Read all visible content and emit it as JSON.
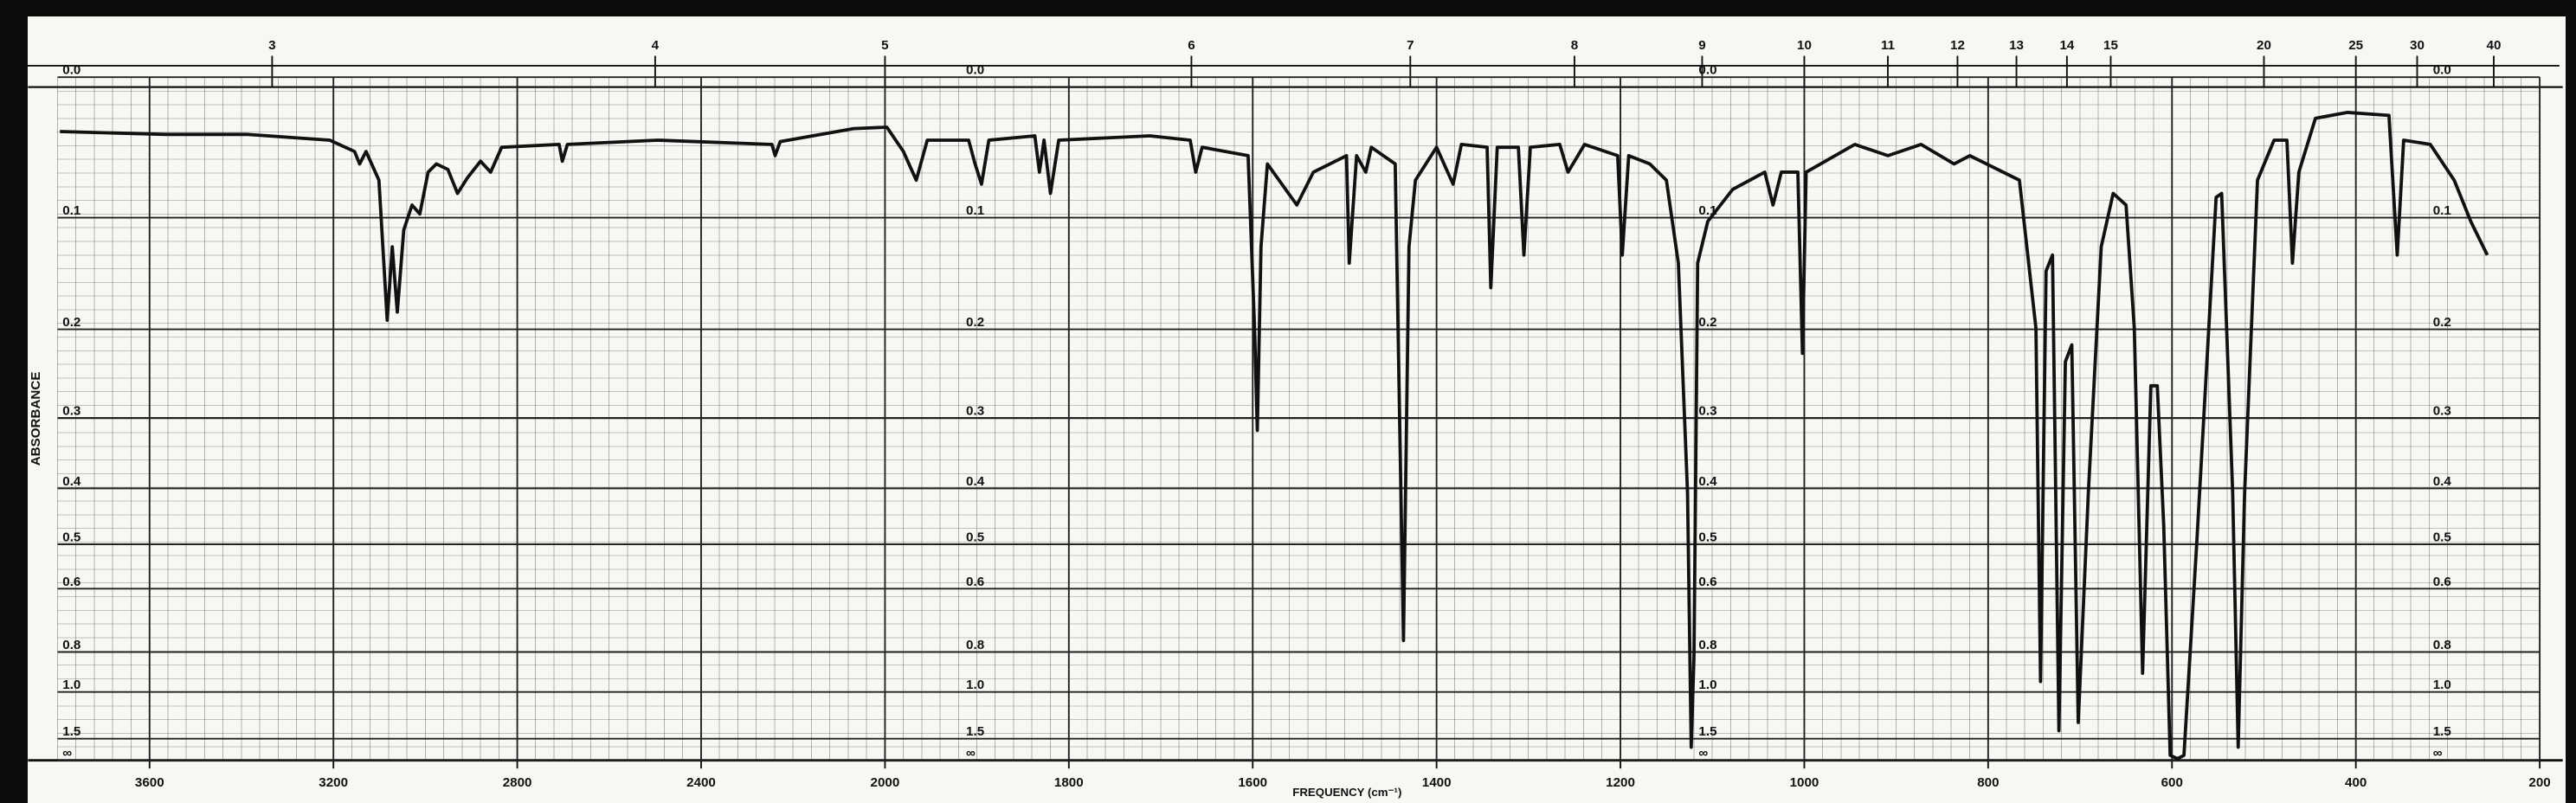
{
  "chart_data": {
    "type": "line",
    "xlabel": "FREQUENCY (cm⁻¹)",
    "ylabel": "ABSORBANCE",
    "xlim": [
      3800,
      200
    ],
    "xticks": [
      3600,
      3200,
      2800,
      2400,
      2000,
      1800,
      1600,
      1400,
      1200,
      1000,
      800,
      600,
      400,
      200
    ],
    "x2ticks": [
      3,
      4,
      5,
      6,
      7,
      8,
      9,
      10,
      11,
      12,
      13,
      14,
      15,
      20,
      25,
      30,
      40
    ],
    "ylim": [
      0,
      null
    ],
    "yscale": "transmittance",
    "yticks": [
      {
        "value": 0,
        "label": "0.0"
      },
      0.1,
      0.2,
      0.3,
      0.4,
      0.5,
      0.6,
      0.8,
      {
        "value": 1,
        "label": "1.0"
      },
      1.5,
      {
        "value": null,
        "label": "∞"
      }
    ],
    "grid": true,
    "color": "#111111",
    "x": [
      3795,
      3564,
      3386,
      3208,
      3154,
      3143,
      3129,
      3101,
      3083,
      3072,
      3061,
      3047,
      3029,
      3012,
      2994,
      2976,
      2951,
      2930,
      2908,
      2880,
      2858,
      2834,
      2709,
      2702,
      2691,
      2495,
      2246,
      2239,
      2228,
      2068,
      1998,
      1980,
      1966,
      1954,
      1909,
      1902,
      1895,
      1887,
      1837,
      1832,
      1827,
      1820,
      1811,
      1712,
      1668,
      1662,
      1655,
      1605,
      1598,
      1595,
      1591,
      1584,
      1552,
      1534,
      1498,
      1495,
      1487,
      1477,
      1471,
      1445,
      1436,
      1430,
      1423,
      1400,
      1382,
      1373,
      1345,
      1341,
      1334,
      1311,
      1305,
      1298,
      1266,
      1257,
      1239,
      1203,
      1198,
      1191,
      1168,
      1150,
      1137,
      1127,
      1123,
      1120,
      1116,
      1105,
      1078,
      1043,
      1034,
      1025,
      1007,
      1002,
      998,
      945,
      909,
      873,
      837,
      820,
      766,
      748,
      743,
      737,
      730,
      723,
      716,
      709,
      702,
      691,
      677,
      664,
      650,
      641,
      632,
      623,
      616,
      609,
      602,
      594,
      587,
      573,
      560,
      552,
      546,
      534,
      528,
      521,
      507,
      489,
      475,
      469,
      462,
      444,
      409,
      364,
      355,
      348,
      319,
      293,
      275,
      257
    ],
    "values": [
      0.036,
      0.038,
      0.038,
      0.042,
      0.05,
      0.059,
      0.05,
      0.071,
      0.191,
      0.124,
      0.183,
      0.11,
      0.09,
      0.097,
      0.065,
      0.059,
      0.063,
      0.081,
      0.069,
      0.057,
      0.065,
      0.047,
      0.045,
      0.057,
      0.045,
      0.042,
      0.045,
      0.053,
      0.043,
      0.034,
      0.033,
      0.05,
      0.071,
      0.042,
      0.042,
      0.059,
      0.074,
      0.042,
      0.039,
      0.065,
      0.042,
      0.081,
      0.042,
      0.039,
      0.042,
      0.065,
      0.047,
      0.053,
      0.199,
      0.316,
      0.124,
      0.059,
      0.09,
      0.065,
      0.053,
      0.138,
      0.053,
      0.065,
      0.047,
      0.059,
      0.756,
      0.124,
      0.071,
      0.047,
      0.074,
      0.045,
      0.047,
      0.16,
      0.047,
      0.047,
      0.131,
      0.047,
      0.045,
      0.065,
      0.045,
      0.053,
      0.131,
      0.053,
      0.059,
      0.071,
      0.138,
      0.407,
      1.716,
      0.82,
      0.138,
      0.103,
      0.078,
      0.065,
      0.09,
      0.065,
      0.065,
      0.225,
      0.065,
      0.045,
      0.053,
      0.045,
      0.059,
      0.053,
      0.071,
      0.199,
      0.938,
      0.145,
      0.131,
      1.364,
      0.234,
      0.216,
      1.257,
      0.407,
      0.124,
      0.081,
      0.09,
      0.199,
      0.895,
      0.261,
      0.261,
      0.464,
      2.14,
      2.62,
      2.14,
      0.495,
      0.199,
      0.084,
      0.081,
      0.407,
      1.716,
      0.407,
      0.071,
      0.042,
      0.042,
      0.138,
      0.065,
      0.027,
      0.023,
      0.025,
      0.131,
      0.042,
      0.045,
      0.071,
      0.103,
      0.131
    ]
  }
}
